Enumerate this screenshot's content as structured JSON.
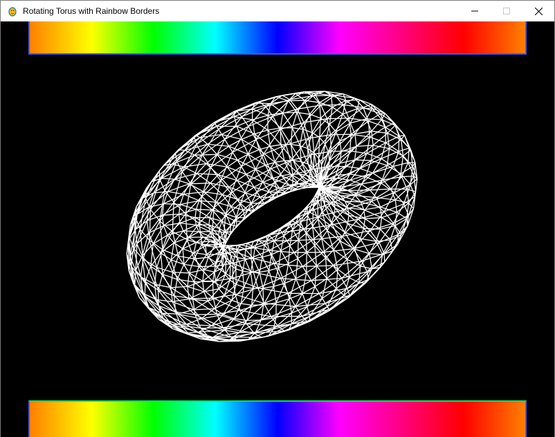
{
  "window": {
    "title": "Rotating Torus with Rainbow Borders",
    "app_icon": "pygame-snake-icon",
    "controls": {
      "minimize_icon": "minimize-icon",
      "maximize_icon": "maximize-icon",
      "close_icon": "close-icon"
    }
  },
  "scene": {
    "background_color": "#000000",
    "wireframe_color": "#ffffff",
    "object": "torus",
    "render_style": "wireframe"
  },
  "rainbow": {
    "colors": [
      "#ff8000",
      "#ffff00",
      "#00ff00",
      "#00ffff",
      "#0000ff",
      "#ff00ff",
      "#ff0080",
      "#ff0000",
      "#ff8000"
    ]
  }
}
